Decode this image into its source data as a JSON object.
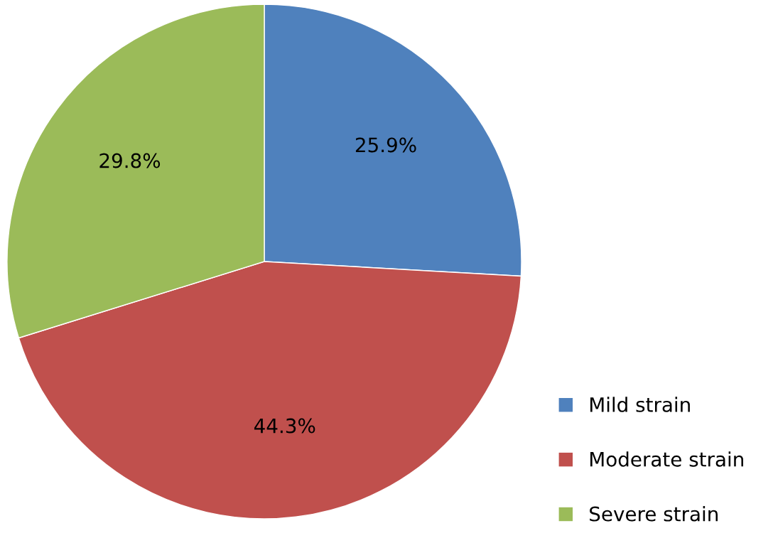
{
  "chart_data": {
    "type": "pie",
    "categories": [
      "Mild strain",
      "Moderate strain",
      "Severe strain"
    ],
    "values": [
      25.9,
      44.3,
      29.8
    ],
    "colors": [
      "#4f81bd",
      "#c0504d",
      "#9bbb59"
    ],
    "value_labels": [
      "25.9%",
      "44.3%",
      "29.8%"
    ],
    "legend": "bottom right"
  }
}
